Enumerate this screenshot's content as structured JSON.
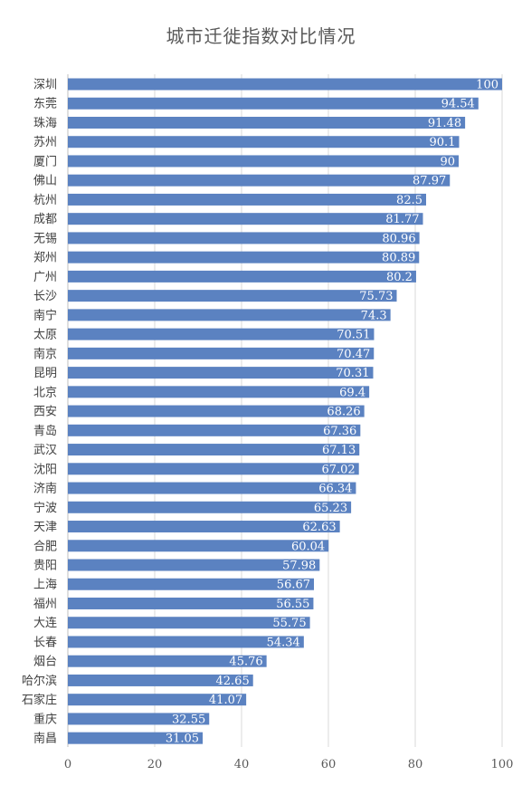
{
  "colors": {
    "bar": "#5b82c1",
    "grid": "#d9d9d9",
    "axis": "#bfbfbf"
  },
  "chart_data": {
    "type": "bar",
    "orientation": "horizontal",
    "title": "城市迁徙指数对比情况",
    "categories": [
      "深圳",
      "东莞",
      "珠海",
      "苏州",
      "厦门",
      "佛山",
      "杭州",
      "成都",
      "无锡",
      "郑州",
      "广州",
      "长沙",
      "南宁",
      "太原",
      "南京",
      "昆明",
      "北京",
      "西安",
      "青岛",
      "武汉",
      "沈阳",
      "济南",
      "宁波",
      "天津",
      "合肥",
      "贵阳",
      "上海",
      "福州",
      "大连",
      "长春",
      "烟台",
      "哈尔滨",
      "石家庄",
      "重庆",
      "南昌"
    ],
    "values": [
      100,
      94.54,
      91.48,
      90.1,
      90,
      87.97,
      82.5,
      81.77,
      80.96,
      80.89,
      80.2,
      75.73,
      74.3,
      70.51,
      70.47,
      70.31,
      69.4,
      68.26,
      67.36,
      67.13,
      67.02,
      66.34,
      65.23,
      62.63,
      60.04,
      57.98,
      56.67,
      56.55,
      55.75,
      54.34,
      45.76,
      42.65,
      41.07,
      32.55,
      31.05
    ],
    "xlim": [
      0,
      100
    ],
    "xticks": [
      "0",
      "20",
      "40",
      "60",
      "80",
      "100"
    ],
    "grid": true
  }
}
